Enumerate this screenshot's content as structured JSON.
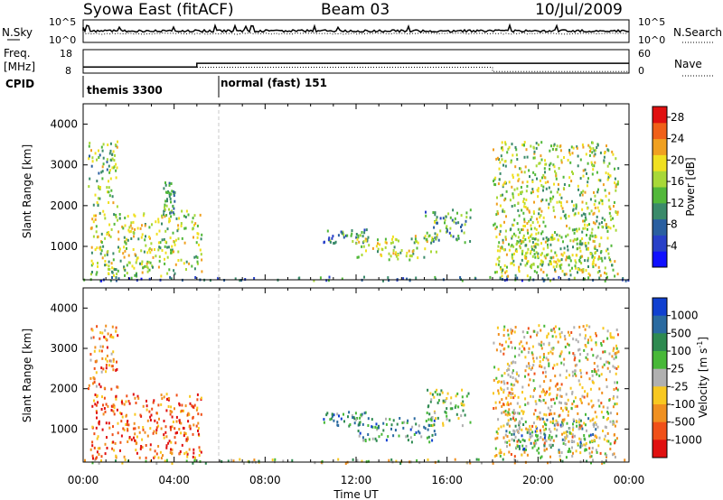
{
  "header": {
    "station": "Syowa East (fitACF)",
    "beam": "Beam 03",
    "date": "10/Jul/2009"
  },
  "summary_panels": {
    "nsky_label": "N.Sky",
    "nsearch_label": "N.Search",
    "noise_ticks": [
      "10^5",
      "10^0"
    ],
    "freq_label_line1": "Freq.",
    "freq_label_line2": "[MHz]",
    "freq_ticks": [
      "18",
      "8"
    ],
    "nave_label": "Nave",
    "nave_ticks": [
      "60",
      "0"
    ],
    "cpid_label": "CPID",
    "cpid_segments": [
      {
        "name": "themis 3300",
        "start_hour": 0
      },
      {
        "name": "normal (fast) 151",
        "start_hour": 6
      }
    ],
    "freq_trace": [
      [
        0,
        10.6
      ],
      [
        5,
        10.6
      ],
      [
        5,
        12.2
      ],
      [
        24,
        12.2
      ]
    ],
    "nave_trace": [
      [
        0,
        15
      ],
      [
        18,
        15
      ],
      [
        18,
        4
      ],
      [
        24,
        4
      ]
    ]
  },
  "chart_data": [
    {
      "type": "heatmap",
      "title": "Power",
      "xlabel": "Time UT",
      "ylabel": "Slant Range [km]",
      "x_ticks": [
        "00:00",
        "04:00",
        "08:00",
        "12:00",
        "16:00",
        "20:00",
        "00:00"
      ],
      "xlim": [
        0,
        24
      ],
      "ylim": [
        180,
        4500
      ],
      "y_ticks": [
        1000,
        2000,
        3000,
        4000
      ],
      "colorbar": {
        "label": "Power [dB]",
        "ticks": [
          "4",
          "8",
          "12",
          "16",
          "20",
          "24",
          "28"
        ],
        "range": [
          0,
          30
        ],
        "colors": [
          "#1010ff",
          "#2840c8",
          "#2a5fa0",
          "#3a8a6a",
          "#52b83a",
          "#a8d838",
          "#f0e020",
          "#f0a020",
          "#f06018",
          "#e01010"
        ]
      },
      "regions": [
        {
          "t": [
            0,
            24
          ],
          "r": [
            180,
            280
          ],
          "level": 0.3
        },
        {
          "t": [
            0.3,
            5.2
          ],
          "r": [
            300,
            1900
          ],
          "level": 0.55
        },
        {
          "t": [
            0.2,
            1.5
          ],
          "r": [
            2000,
            3600
          ],
          "level": 0.5
        },
        {
          "t": [
            3.5,
            4.0
          ],
          "r": [
            1800,
            2600
          ],
          "level": 0.35
        },
        {
          "t": [
            10.5,
            12.5
          ],
          "r": [
            1100,
            1450
          ],
          "level": 0.35
        },
        {
          "t": [
            12.0,
            15.5
          ],
          "r": [
            700,
            1300
          ],
          "level": 0.55
        },
        {
          "t": [
            15.0,
            17.0
          ],
          "r": [
            1100,
            2000
          ],
          "level": 0.4
        },
        {
          "t": [
            18.5,
            22.5
          ],
          "r": [
            500,
            1300
          ],
          "level": 0.55
        },
        {
          "t": [
            18.0,
            23.5
          ],
          "r": [
            300,
            3600
          ],
          "level": 0.55
        }
      ]
    },
    {
      "type": "heatmap",
      "title": "Velocity",
      "xlabel": "Time UT",
      "ylabel": "Slant Range [km]",
      "x_ticks": [
        "00:00",
        "04:00",
        "08:00",
        "12:00",
        "16:00",
        "20:00",
        "00:00"
      ],
      "xlim": [
        0,
        24
      ],
      "ylim": [
        180,
        4500
      ],
      "y_ticks": [
        1000,
        2000,
        3000,
        4000
      ],
      "colorbar": {
        "label": "Velocity [m s",
        "label_superscript": "-1",
        "label_close": "]",
        "ticks": [
          "1000",
          "500",
          "100",
          "25",
          "-25",
          "-100",
          "-500",
          "-1000"
        ],
        "colors": [
          "#1040d0",
          "#2a6aa0",
          "#2e8a50",
          "#48b838",
          "#b0b0b0",
          "#f8c820",
          "#f09020",
          "#f05018",
          "#e01010"
        ]
      },
      "regions": [
        {
          "t": [
            0,
            24
          ],
          "r": [
            180,
            280
          ],
          "level": 0.5
        },
        {
          "t": [
            0.3,
            5.2
          ],
          "r": [
            300,
            1900
          ],
          "level": 0.8
        },
        {
          "t": [
            0.2,
            1.5
          ],
          "r": [
            2000,
            3600
          ],
          "level": 0.75
        },
        {
          "t": [
            10.5,
            12.5
          ],
          "r": [
            1100,
            1450
          ],
          "level": 0.3
        },
        {
          "t": [
            12.0,
            15.5
          ],
          "r": [
            700,
            1300
          ],
          "level": 0.3
        },
        {
          "t": [
            15.0,
            17.0
          ],
          "r": [
            1100,
            2000
          ],
          "level": 0.45
        },
        {
          "t": [
            18.5,
            22.5
          ],
          "r": [
            500,
            1300
          ],
          "level": 0.3
        },
        {
          "t": [
            18.0,
            23.5
          ],
          "r": [
            300,
            3600
          ],
          "level": 0.6
        }
      ]
    }
  ]
}
